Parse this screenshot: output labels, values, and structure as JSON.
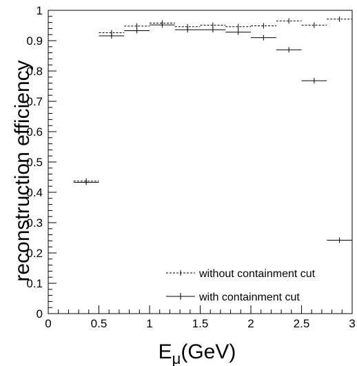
{
  "chart_data": {
    "type": "scatter",
    "xlabel": "E",
    "xlabel_sub": "μ",
    "xlabel_suffix": "(GeV)",
    "ylabel": "reconstruction efficiency",
    "xlim": [
      0,
      3
    ],
    "ylim": [
      0,
      1
    ],
    "x_ticks": [
      "0",
      "0.5",
      "1",
      "1.5",
      "2",
      "2.5",
      "3"
    ],
    "y_ticks": [
      "0",
      "0.1",
      "0.2",
      "0.3",
      "0.4",
      "0.5",
      "0.6",
      "0.7",
      "0.8",
      "0.9",
      "1"
    ],
    "legend_position": "bottom-right",
    "series": [
      {
        "name": "without containment cut",
        "line_style": "dashed",
        "points": [
          {
            "x": 0.375,
            "y": 0.437,
            "xlo": 0.25,
            "xhi": 0.5
          },
          {
            "x": 0.625,
            "y": 0.926,
            "xlo": 0.5,
            "xhi": 0.75
          },
          {
            "x": 0.875,
            "y": 0.948,
            "xlo": 0.75,
            "xhi": 1.0
          },
          {
            "x": 1.125,
            "y": 0.958,
            "xlo": 1.0,
            "xhi": 1.25
          },
          {
            "x": 1.375,
            "y": 0.946,
            "xlo": 1.25,
            "xhi": 1.5
          },
          {
            "x": 1.625,
            "y": 0.951,
            "xlo": 1.5,
            "xhi": 1.75
          },
          {
            "x": 1.875,
            "y": 0.946,
            "xlo": 1.75,
            "xhi": 2.0
          },
          {
            "x": 2.125,
            "y": 0.949,
            "xlo": 2.0,
            "xhi": 2.25
          },
          {
            "x": 2.375,
            "y": 0.965,
            "xlo": 2.25,
            "xhi": 2.5
          },
          {
            "x": 2.625,
            "y": 0.951,
            "xlo": 2.5,
            "xhi": 2.75
          },
          {
            "x": 2.875,
            "y": 0.971,
            "xlo": 2.75,
            "xhi": 3.0
          }
        ]
      },
      {
        "name": "with containment cut",
        "line_style": "solid",
        "points": [
          {
            "x": 0.375,
            "y": 0.433,
            "xlo": 0.25,
            "xhi": 0.5
          },
          {
            "x": 0.625,
            "y": 0.916,
            "xlo": 0.5,
            "xhi": 0.75
          },
          {
            "x": 0.875,
            "y": 0.933,
            "xlo": 0.75,
            "xhi": 1.0
          },
          {
            "x": 1.125,
            "y": 0.952,
            "xlo": 1.0,
            "xhi": 1.25
          },
          {
            "x": 1.375,
            "y": 0.936,
            "xlo": 1.25,
            "xhi": 1.5
          },
          {
            "x": 1.625,
            "y": 0.936,
            "xlo": 1.5,
            "xhi": 1.75
          },
          {
            "x": 1.875,
            "y": 0.928,
            "xlo": 1.75,
            "xhi": 2.0
          },
          {
            "x": 2.125,
            "y": 0.91,
            "xlo": 2.0,
            "xhi": 2.25
          },
          {
            "x": 2.375,
            "y": 0.87,
            "xlo": 2.25,
            "xhi": 2.5
          },
          {
            "x": 2.625,
            "y": 0.768,
            "xlo": 2.5,
            "xhi": 2.75
          },
          {
            "x": 2.875,
            "y": 0.242,
            "xlo": 2.75,
            "xhi": 3.0
          }
        ]
      }
    ]
  }
}
